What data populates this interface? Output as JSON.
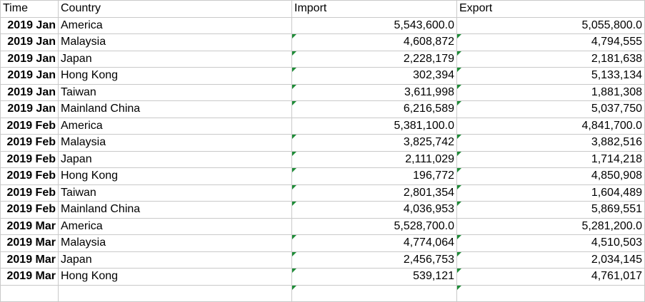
{
  "headers": {
    "time": "Time",
    "country": "Country",
    "import": "Import",
    "export": "Export"
  },
  "rows": [
    {
      "time": "2019 Jan",
      "country": "America",
      "import": "5,543,600.0",
      "export": "5,055,800.0",
      "flagged": false
    },
    {
      "time": "2019 Jan",
      "country": "Malaysia",
      "import": "4,608,872",
      "export": "4,794,555",
      "flagged": true
    },
    {
      "time": "2019 Jan",
      "country": "Japan",
      "import": "2,228,179",
      "export": "2,181,638",
      "flagged": true
    },
    {
      "time": "2019 Jan",
      "country": "Hong Kong",
      "import": "302,394",
      "export": "5,133,134",
      "flagged": true
    },
    {
      "time": "2019 Jan",
      "country": "Taiwan",
      "import": "3,611,998",
      "export": "1,881,308",
      "flagged": true
    },
    {
      "time": "2019 Jan",
      "country": "Mainland China",
      "import": "6,216,589",
      "export": "5,037,750",
      "flagged": true
    },
    {
      "time": "2019 Feb",
      "country": "America",
      "import": "5,381,100.0",
      "export": "4,841,700.0",
      "flagged": false
    },
    {
      "time": "2019 Feb",
      "country": "Malaysia",
      "import": "3,825,742",
      "export": "3,882,516",
      "flagged": true
    },
    {
      "time": "2019 Feb",
      "country": "Japan",
      "import": "2,111,029",
      "export": "1,714,218",
      "flagged": true
    },
    {
      "time": "2019 Feb",
      "country": "Hong Kong",
      "import": "196,772",
      "export": "4,850,908",
      "flagged": true
    },
    {
      "time": "2019 Feb",
      "country": "Taiwan",
      "import": "2,801,354",
      "export": "1,604,489",
      "flagged": true
    },
    {
      "time": "2019 Feb",
      "country": "Mainland China",
      "import": "4,036,953",
      "export": "5,869,551",
      "flagged": true
    },
    {
      "time": "2019 Mar",
      "country": "America",
      "import": "5,528,700.0",
      "export": "5,281,200.0",
      "flagged": false
    },
    {
      "time": "2019 Mar",
      "country": "Malaysia",
      "import": "4,774,064",
      "export": "4,510,503",
      "flagged": true
    },
    {
      "time": "2019 Mar",
      "country": "Japan",
      "import": "2,456,753",
      "export": "2,034,145",
      "flagged": true
    },
    {
      "time": "2019 Mar",
      "country": "Hong Kong",
      "import": "539,121",
      "export": "4,761,017",
      "flagged": true
    },
    {
      "time": "",
      "country": "",
      "import": "",
      "export": "",
      "flagged": true
    }
  ]
}
